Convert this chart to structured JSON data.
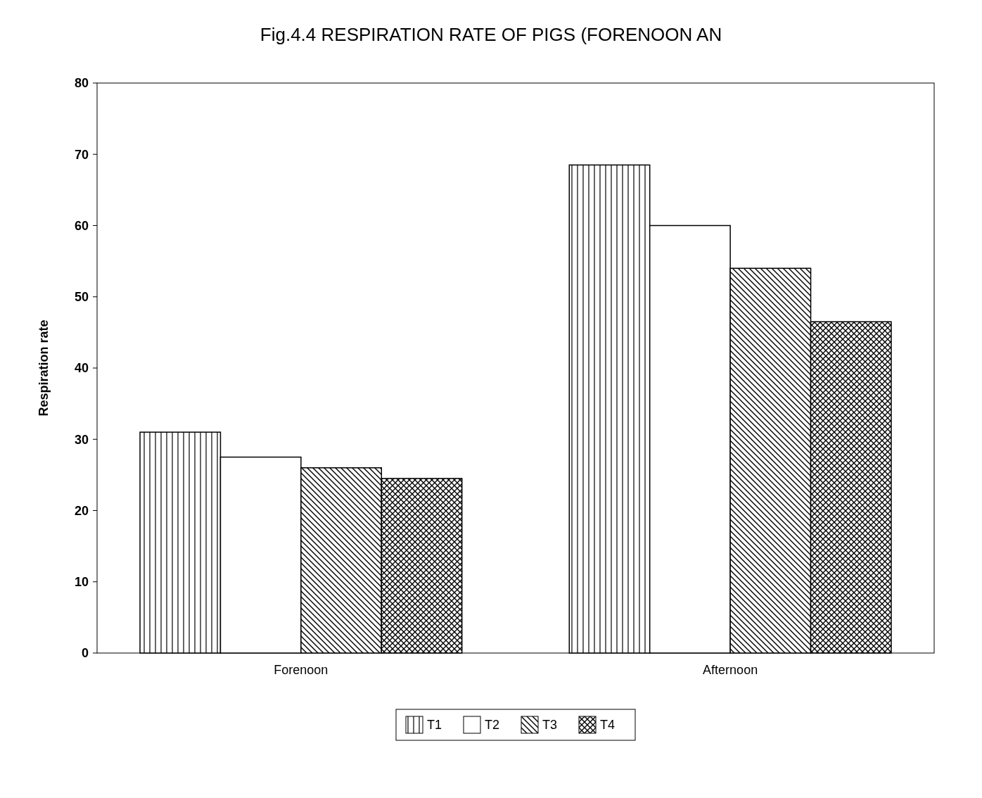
{
  "chart_data": {
    "type": "bar",
    "title": "Fig.4.4  RESPIRATION RATE OF PIGS (FORENOON AN",
    "ylabel": "Respiration rate",
    "categories": [
      "Forenoon",
      "Afternoon"
    ],
    "series": [
      {
        "name": "T1",
        "color": "#000000",
        "values": [
          31,
          68.5
        ]
      },
      {
        "name": "T2",
        "color": "#000000",
        "values": [
          27.5,
          60
        ]
      },
      {
        "name": "T3",
        "color": "#000000",
        "values": [
          26,
          54
        ]
      },
      {
        "name": "T4",
        "color": "#000000",
        "values": [
          24.5,
          46.5
        ]
      }
    ],
    "ylim": [
      0,
      80
    ],
    "yticks": [
      0,
      10,
      20,
      30,
      40,
      50,
      60,
      70,
      80
    ],
    "grid": false,
    "legend": "bottom"
  }
}
